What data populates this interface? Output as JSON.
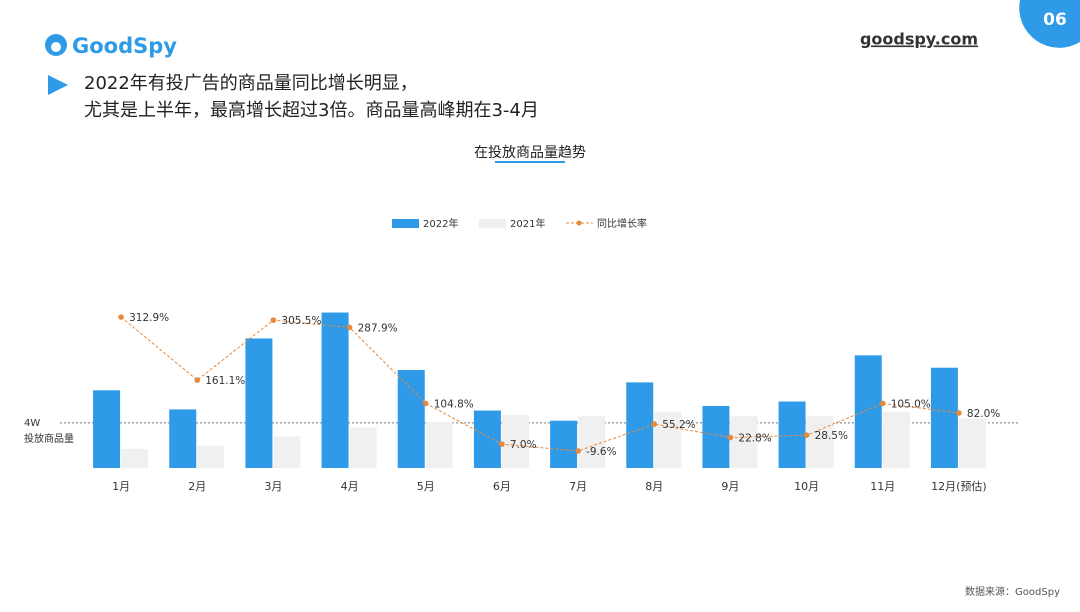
{
  "page": {
    "logo": "GoodSpy",
    "site": "goodspy.com",
    "page_number": "06",
    "headline": [
      "2022年有投广告的商品量同比增长明显，",
      "尤其是上半年，最高增长超过3倍。商品量高峰期在3-4月"
    ],
    "source": "数据来源：GoodSpy"
  },
  "chart_data": {
    "type": "bar_line",
    "title": "在投放商品量趋势",
    "ylabel": "投放商品量",
    "categories": [
      "1月",
      "2月",
      "3月",
      "4月",
      "5月",
      "6月",
      "7月",
      "8月",
      "9月",
      "10月",
      "11月",
      "12月(预估)"
    ],
    "ylim": [
      0,
      15.8
    ],
    "yticks": [
      {
        "value": 4,
        "label": "4W"
      }
    ],
    "y2lim": [
      -50.5,
      378
    ],
    "series": [
      {
        "name": "2022年",
        "type": "bar",
        "color": "#2f9be8",
        "values": [
          6.9,
          5.2,
          11.5,
          13.8,
          8.7,
          5.1,
          4.2,
          7.6,
          5.5,
          5.9,
          10.0,
          8.9
        ]
      },
      {
        "name": "2021年",
        "type": "bar",
        "color": "#f0f0f0",
        "values": [
          1.7,
          2.0,
          2.8,
          3.6,
          4.1,
          4.7,
          4.6,
          5.0,
          4.6,
          4.6,
          5.0,
          4.4
        ]
      },
      {
        "name": "同比增长率",
        "type": "line",
        "axis": "y2",
        "color": "#e8883a",
        "values": [
          312.9,
          161.1,
          305.5,
          287.9,
          104.8,
          7.0,
          -9.6,
          55.2,
          22.8,
          28.5,
          105.0,
          82.0
        ],
        "value_labels": [
          "312.9%",
          "161.1%",
          "305.5%",
          "287.9%",
          "104.8%",
          "7.0%",
          "-9.6%",
          "55.2%",
          "22.8%",
          "28.5%",
          "105.0%",
          "82.0%"
        ]
      }
    ]
  }
}
